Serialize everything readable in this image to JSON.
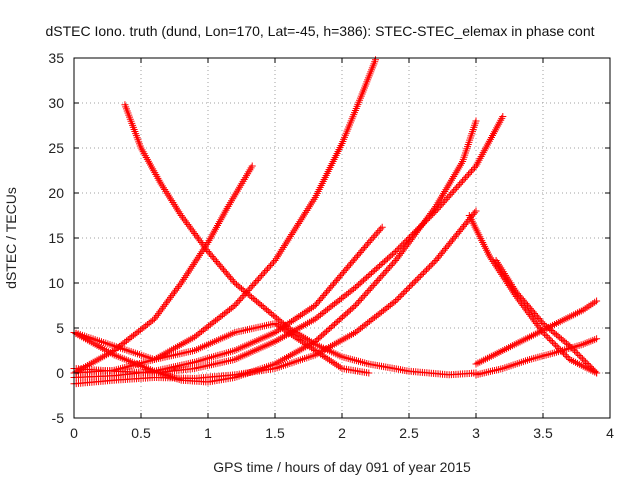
{
  "chart_data": {
    "type": "scatter",
    "title": "dSTEC Iono. truth (dund, Lon=170, Lat=-45, h=386): STEC-STEC_elemax in phase cont",
    "xlabel": "GPS time / hours of day 091 of year 2015",
    "ylabel": "dSTEC  / TECUs",
    "xlim": [
      0,
      4
    ],
    "ylim": [
      -5,
      35
    ],
    "xticks": [
      0,
      0.5,
      1,
      1.5,
      2,
      2.5,
      3,
      3.5,
      4
    ],
    "xtick_labels": [
      "0",
      "0.5",
      "1",
      "1.5",
      "2",
      "2.5",
      "3",
      "3.5",
      "4"
    ],
    "yticks": [
      -5,
      0,
      5,
      10,
      15,
      20,
      25,
      30,
      35
    ],
    "ytick_labels": [
      "-5",
      "0",
      "5",
      "10",
      "15",
      "20",
      "25",
      "30",
      "35"
    ],
    "grid": true,
    "marker": "+",
    "color": "#ff0000",
    "series": [
      {
        "name": "s1",
        "x": [
          0.0,
          0.3,
          0.6,
          0.8,
          1.0,
          1.15,
          1.33
        ],
        "y": [
          0.0,
          2.5,
          6.0,
          10.0,
          14.5,
          18.5,
          23.0
        ]
      },
      {
        "name": "s2",
        "x": [
          0.38,
          0.5,
          0.65,
          0.8,
          1.0,
          1.2,
          1.4,
          1.6,
          1.8,
          2.0,
          2.2,
          2.5,
          2.8,
          3.0
        ],
        "y": [
          29.8,
          25.0,
          21.0,
          17.5,
          13.5,
          10.0,
          7.5,
          5.0,
          3.2,
          1.8,
          1.0,
          0.2,
          -0.2,
          0.0
        ]
      },
      {
        "name": "s3",
        "x": [
          0.0,
          0.3,
          0.6,
          0.9,
          1.2,
          1.5,
          1.8,
          2.0,
          2.15,
          2.25
        ],
        "y": [
          0.0,
          0.3,
          1.5,
          4.0,
          7.5,
          12.5,
          19.5,
          25.5,
          31.0,
          34.8
        ]
      },
      {
        "name": "s4",
        "x": [
          0.0,
          0.3,
          0.6,
          0.9,
          1.2,
          1.5,
          1.8,
          2.0,
          2.2,
          2.3
        ],
        "y": [
          -0.5,
          -0.3,
          0.2,
          1.2,
          2.5,
          4.5,
          7.5,
          11.0,
          14.5,
          16.2
        ]
      },
      {
        "name": "s5",
        "x": [
          0.0,
          0.3,
          0.6,
          0.9,
          1.2,
          1.5,
          1.8,
          2.1,
          2.4,
          2.7,
          3.0
        ],
        "y": [
          -1.2,
          -0.8,
          -0.5,
          -0.6,
          -0.2,
          0.5,
          2.0,
          4.5,
          8.0,
          12.5,
          18.0
        ]
      },
      {
        "name": "s6",
        "x": [
          0.0,
          0.3,
          0.6,
          0.8,
          1.0,
          1.2,
          1.5,
          1.8,
          2.1,
          2.4,
          2.7,
          2.9,
          3.0
        ],
        "y": [
          4.5,
          2.0,
          0.2,
          -0.8,
          -1.0,
          -0.5,
          1.0,
          3.5,
          7.5,
          12.5,
          18.5,
          23.5,
          28.0
        ]
      },
      {
        "name": "s7",
        "x": [
          0.0,
          0.3,
          0.6,
          0.9,
          1.2,
          1.5,
          1.8,
          2.1,
          2.4,
          2.7,
          3.0,
          3.2
        ],
        "y": [
          0.5,
          0.2,
          0.0,
          0.5,
          1.5,
          3.5,
          6.0,
          9.5,
          13.5,
          18.0,
          23.0,
          28.5
        ]
      },
      {
        "name": "s8",
        "x": [
          0.0,
          0.3,
          0.6,
          0.9,
          1.2,
          1.5,
          1.8,
          2.0,
          2.2
        ],
        "y": [
          4.5,
          3.0,
          1.5,
          2.5,
          4.5,
          5.5,
          2.5,
          0.5,
          0.0
        ]
      },
      {
        "name": "s9",
        "x": [
          2.95,
          3.1,
          3.3,
          3.5,
          3.7,
          3.9
        ],
        "y": [
          17.5,
          13.0,
          8.5,
          4.5,
          1.5,
          0.0
        ]
      },
      {
        "name": "s10",
        "x": [
          3.15,
          3.3,
          3.5,
          3.7,
          3.9
        ],
        "y": [
          12.5,
          9.0,
          5.5,
          3.0,
          0.0
        ]
      },
      {
        "name": "s11",
        "x": [
          3.0,
          3.2,
          3.4,
          3.6,
          3.8,
          3.9
        ],
        "y": [
          1.0,
          2.5,
          4.0,
          5.5,
          7.0,
          8.0
        ]
      },
      {
        "name": "s12",
        "x": [
          3.0,
          3.2,
          3.4,
          3.6,
          3.8,
          3.9
        ],
        "y": [
          -0.2,
          0.5,
          1.5,
          2.3,
          3.2,
          3.8
        ]
      }
    ]
  }
}
